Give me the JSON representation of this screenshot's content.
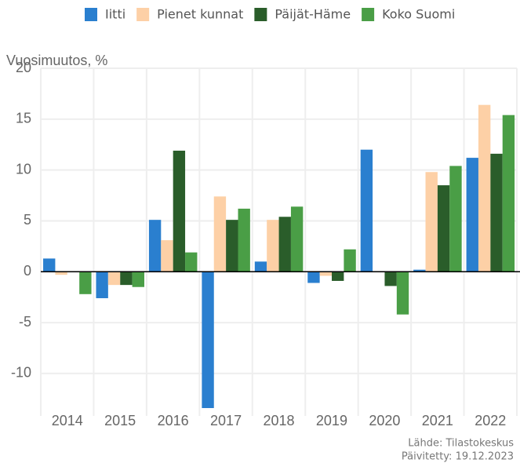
{
  "chart_data": {
    "type": "bar",
    "y_label": "Vuosimuutos, %",
    "categories": [
      "2014",
      "2015",
      "2016",
      "2017",
      "2018",
      "2019",
      "2020",
      "2021",
      "2022"
    ],
    "series": [
      {
        "name": "Iitti",
        "color": "#2a7fcf",
        "values": [
          1.3,
          -2.6,
          5.1,
          -14,
          1.0,
          -1.1,
          12.0,
          0.2,
          11.2
        ]
      },
      {
        "name": "Pienet kunnat",
        "color": "#fdd0a6",
        "values": [
          -0.3,
          -1.3,
          3.1,
          7.4,
          5.1,
          -0.4,
          0,
          9.8,
          16.4
        ]
      },
      {
        "name": "Päijät-Häme",
        "color": "#2a5d2a",
        "values": [
          0,
          -1.3,
          11.9,
          5.1,
          5.4,
          -0.9,
          -1.4,
          8.5,
          11.6
        ]
      },
      {
        "name": "Koko Suomi",
        "color": "#4a9e46",
        "values": [
          -2.2,
          -1.5,
          1.9,
          6.2,
          6.4,
          2.2,
          -4.2,
          10.4,
          15.4
        ]
      }
    ],
    "ylim": [
      -13.4,
      20
    ],
    "yticks": [
      -10,
      -5,
      0,
      5,
      10,
      15,
      20
    ],
    "grid": true,
    "legend": "top",
    "source": "Lähde: Tilastokeskus",
    "updated": "Päivitetty: 19.12.2023"
  }
}
